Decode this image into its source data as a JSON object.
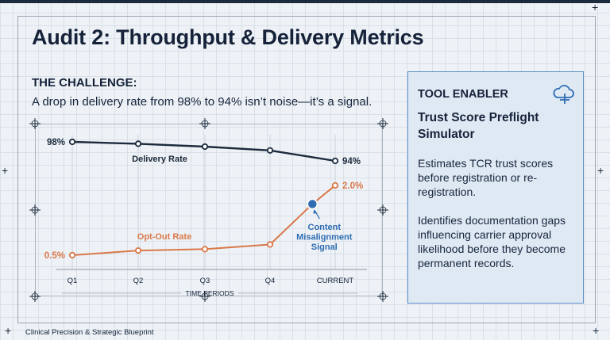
{
  "slide": {
    "title": "Audit 2: Throughput & Delivery Metrics",
    "challenge_heading": "THE CHALLENGE:",
    "challenge_text": "A drop in delivery rate from 98% to 94% isn’t noise—it’s a signal.",
    "footer": "Clinical Precision & Strategic Blueprint"
  },
  "tool_panel": {
    "label": "TOOL ENABLER",
    "icon": "cloud-plus-icon",
    "title": "Trust Score Preflight Simulator",
    "paragraph1": "Estimates TCR trust scores before registration or re-registration.",
    "paragraph2": "Identifies documentation gaps influencing carrier approval likelihood before they become permanent records."
  },
  "chart_data": {
    "type": "line",
    "categories": [
      "Q1",
      "Q2",
      "Q3",
      "Q4",
      "CURRENT"
    ],
    "xlabel": "TIME PERIODS",
    "series": [
      {
        "name": "Delivery Rate",
        "color": "#1b2a3c",
        "x": [
          0,
          1,
          2,
          3,
          4
        ],
        "values": [
          98,
          97.6,
          97,
          96.2,
          94
        ],
        "start_label": "98%",
        "end_label": "94%"
      },
      {
        "name": "Opt-Out Rate",
        "color": "#d9784a",
        "x": [
          0,
          1,
          2,
          3,
          3.65,
          4
        ],
        "values": [
          0.5,
          0.6,
          0.63,
          0.73,
          1.6,
          2.0
        ],
        "start_label": "0.5%",
        "end_label": "2.0%"
      }
    ],
    "annotation": {
      "text": "Content Misalignment Signal",
      "color": "#2f6db3",
      "x": 3.65,
      "y": 1.6
    },
    "grid": true
  },
  "colors": {
    "navy": "#1b2a3c",
    "orange": "#d9784a",
    "accent_blue": "#2f6db3",
    "panel_bg": "#dfe9f4",
    "panel_border": "#5a8fc8"
  }
}
